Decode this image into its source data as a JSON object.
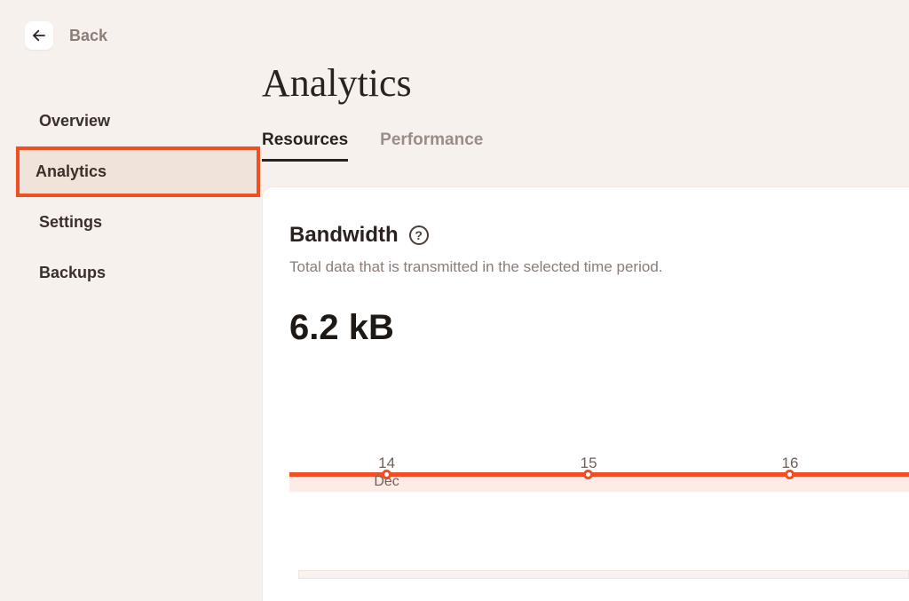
{
  "back": {
    "label": "Back"
  },
  "page": {
    "title": "Analytics"
  },
  "sidebar": {
    "items": [
      {
        "label": "Overview",
        "active": false
      },
      {
        "label": "Analytics",
        "active": true
      },
      {
        "label": "Settings",
        "active": false
      },
      {
        "label": "Backups",
        "active": false
      }
    ]
  },
  "tabs": [
    {
      "label": "Resources",
      "active": true
    },
    {
      "label": "Performance",
      "active": false
    }
  ],
  "bandwidth": {
    "title": "Bandwidth",
    "description": "Total data that is transmitted in the selected time period.",
    "value": "6.2 kB",
    "chart": {
      "type": "line",
      "line_color": "#f04e23",
      "line_fill_color": "#fdece5",
      "line_width": 5,
      "marker_style": "circle",
      "marker_border_color": "#f04e23",
      "marker_fill_color": "#ffffff",
      "marker_size": 11,
      "background_color": "#ffffff",
      "xlabel_color": "#6e615b",
      "xlabel_fontsize": 17,
      "points": [
        {
          "x_percent": 15.7,
          "label": "14",
          "sublabel": "Dec"
        },
        {
          "x_percent": 48.3,
          "label": "15"
        },
        {
          "x_percent": 80.8,
          "label": "16"
        }
      ]
    }
  },
  "colors": {
    "page_bg": "#f7f1ee",
    "card_bg": "#ffffff",
    "accent": "#f04e23",
    "text_primary": "#2b2220",
    "text_muted": "#8b7d76",
    "sidebar_active_bg": "#efe3da"
  }
}
